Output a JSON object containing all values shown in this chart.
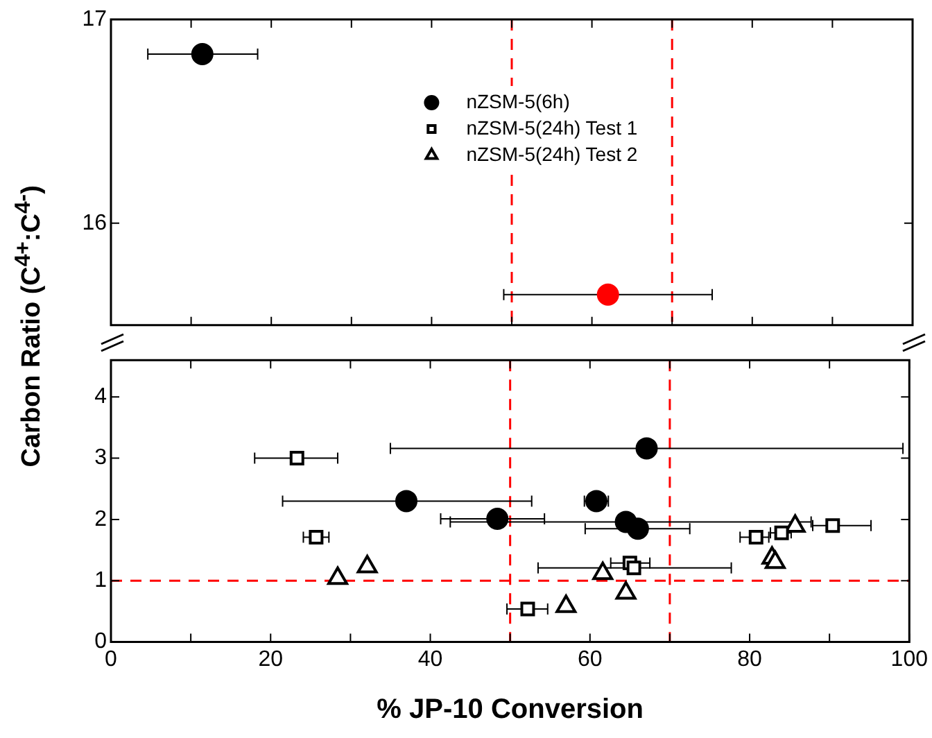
{
  "chart_data": [
    {
      "type": "scatter",
      "legend": "top right",
      "grid": false,
      "tick_labels": "y",
      "xlim": [
        0,
        100
      ],
      "xticks": [
        0,
        {
          "value": 10,
          "label": null
        },
        20,
        {
          "value": 30,
          "label": null
        },
        40,
        {
          "value": 50,
          "label": null
        },
        60,
        {
          "value": 70,
          "label": null
        },
        80,
        {
          "value": 90,
          "label": null
        },
        100
      ],
      "ylim": [
        15.5,
        17
      ],
      "yticks": [
        16,
        17
      ],
      "series": [
        {
          "name": "nZSM-5(6h)",
          "color": "#000000",
          "marker": "circle",
          "x": [
            11.4
          ],
          "values": [
            16.83
          ],
          "xerrors": [
            [
              4.6,
              18.3
            ]
          ]
        },
        {
          "name": "nZSM-5(24h) Test 1",
          "color": "#000000",
          "marker": "square"
        },
        {
          "name": "nZSM-5(24h) Test 2",
          "color": "#000000",
          "marker": "triangle"
        },
        {
          "color": "#ff0000",
          "marker": "circle",
          "x": [
            62
          ],
          "values": [
            15.65
          ],
          "xerrors": [
            [
              49,
              75
            ]
          ]
        }
      ],
      "ref_lines": [
        {
          "axis": "x",
          "value": 50,
          "color": "#ff0000",
          "line_style": "dashed"
        },
        {
          "axis": "x",
          "value": 70,
          "color": "#ff0000",
          "line_style": "dashed"
        }
      ]
    },
    {
      "type": "scatter",
      "grid": false,
      "xlabel": "% JP-10 Conversion",
      "ylabel": "Carbon Ratio (C$^{4+}$:C$^{4-}$)",
      "xlim": [
        0,
        100
      ],
      "xticks": [
        0,
        {
          "value": 10,
          "label": null
        },
        20,
        {
          "value": 30,
          "label": null
        },
        40,
        {
          "value": 50,
          "label": null
        },
        60,
        {
          "value": 70,
          "label": null
        },
        80,
        {
          "value": 90,
          "label": null
        },
        100
      ],
      "ylim": [
        0,
        4.6
      ],
      "yticks": [
        0,
        1,
        2,
        3,
        4
      ],
      "series": [
        {
          "color": "#000000",
          "marker": "circle",
          "x": [
            67.1,
            37.0,
            60.8,
            48.4,
            64.5,
            66.0
          ],
          "values": [
            3.16,
            2.3,
            2.3,
            2.01,
            1.96,
            1.85
          ],
          "xerrors": [
            [
              35.0,
              99.2
            ],
            [
              21.5,
              52.7
            ],
            [
              59.3,
              62.3
            ],
            [
              41.3,
              54.3
            ],
            [
              42.5,
              87.7
            ],
            [
              59.4,
              72.5
            ]
          ]
        },
        {
          "color": "#000000",
          "marker": "square",
          "x": [
            23.3,
            25.7,
            52.2,
            65.0,
            65.5,
            80.8,
            84.0,
            90.4
          ],
          "values": [
            3.0,
            1.71,
            0.54,
            1.29,
            1.21,
            1.71,
            1.78,
            1.9
          ],
          "xerrors": [
            [
              18.0,
              28.4
            ],
            [
              24.1,
              27.3
            ],
            [
              49.6,
              54.7
            ],
            [
              62.6,
              67.5
            ],
            [
              53.5,
              77.7
            ],
            [
              78.8,
              82.4
            ],
            [
              82.6,
              85.2
            ],
            [
              87.9,
              95.2
            ]
          ]
        },
        {
          "color": "#000000",
          "marker": "triangle",
          "x": [
            28.4,
            32.1,
            57.0,
            61.6,
            64.5,
            82.8,
            83.2,
            85.7
          ],
          "values": [
            1.04,
            1.23,
            0.58,
            1.12,
            0.8,
            1.37,
            1.3,
            1.89
          ]
        }
      ],
      "ref_lines": [
        {
          "axis": "x",
          "value": 50,
          "color": "#ff0000",
          "line_style": "dashed"
        },
        {
          "axis": "x",
          "value": 70,
          "color": "#ff0000",
          "line_style": "dashed"
        },
        {
          "axis": "y",
          "value": 1,
          "color": "#ff0000",
          "line_style": "dashed"
        }
      ]
    }
  ]
}
